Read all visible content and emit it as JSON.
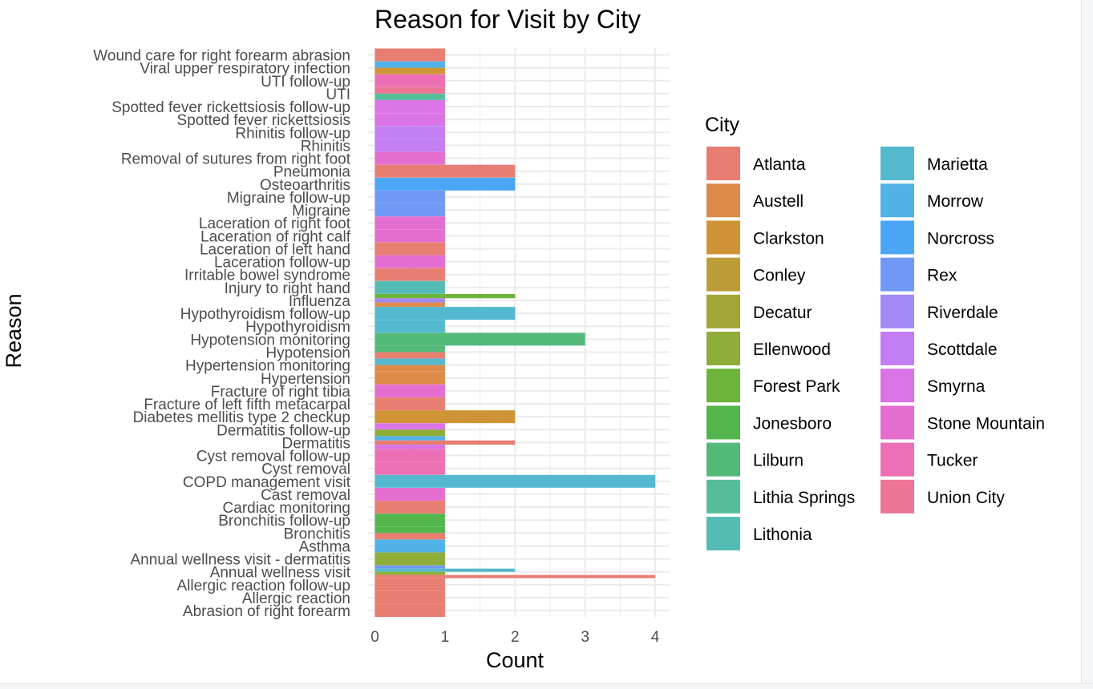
{
  "chart_data": {
    "type": "bar",
    "orientation": "horizontal",
    "stacking": "dodge",
    "title": "Reason for Visit by City",
    "xlabel": "Count",
    "ylabel": "Reason",
    "xlim": [
      0,
      4.2
    ],
    "x_ticks": [
      0,
      1,
      2,
      3,
      4
    ],
    "grid": true,
    "legend": {
      "title": "City",
      "position": "right",
      "columns": 2,
      "entries": [
        {
          "name": "Atlanta",
          "color": "#E87D72"
        },
        {
          "name": "Austell",
          "color": "#DE8A49"
        },
        {
          "name": "Clarkston",
          "color": "#CF9435"
        },
        {
          "name": "Conley",
          "color": "#BB9C37"
        },
        {
          "name": "Decatur",
          "color": "#A3A537"
        },
        {
          "name": "Ellenwood",
          "color": "#8EAD38"
        },
        {
          "name": "Forest Park",
          "color": "#6DB43A"
        },
        {
          "name": "Jonesboro",
          "color": "#52B64C"
        },
        {
          "name": "Lilburn",
          "color": "#53BA7A"
        },
        {
          "name": "Lithia Springs",
          "color": "#55BD9A"
        },
        {
          "name": "Lithonia",
          "color": "#55BCB5"
        },
        {
          "name": "Marietta",
          "color": "#54B9CF"
        },
        {
          "name": "Morrow",
          "color": "#50B2E6"
        },
        {
          "name": "Norcross",
          "color": "#4BA7F6"
        },
        {
          "name": "Rex",
          "color": "#7099F6"
        },
        {
          "name": "Riverdale",
          "color": "#A18AF3"
        },
        {
          "name": "Scottdale",
          "color": "#C27EF2"
        },
        {
          "name": "Smyrna",
          "color": "#DA74E6"
        },
        {
          "name": "Stone Mountain",
          "color": "#E46ED0"
        },
        {
          "name": "Tucker",
          "color": "#ED6FB5"
        },
        {
          "name": "Union City",
          "color": "#EC7495"
        }
      ]
    },
    "categories": [
      "Wound care for right forearm abrasion",
      "Viral upper respiratory infection",
      "UTI follow-up",
      "UTI",
      "Spotted fever rickettsiosis follow-up",
      "Spotted fever rickettsiosis",
      "Rhinitis follow-up",
      "Rhinitis",
      "Removal of sutures from right foot",
      "Pneumonia",
      "Osteoarthritis",
      "Migraine follow-up",
      "Migraine",
      "Laceration of right foot",
      "Laceration of right calf",
      "Laceration of left hand",
      "Laceration follow-up",
      "Irritable bowel syndrome",
      "Injury to right hand",
      "Influenza",
      "Hypothyroidism follow-up",
      "Hypothyroidism",
      "Hypotension monitoring",
      "Hypotension",
      "Hypertension monitoring",
      "Hypertension",
      "Fracture of right tibia",
      "Fracture of left fifth metacarpal",
      "Diabetes mellitis type 2 checkup",
      "Dermatitis follow-up",
      "Dermatitis",
      "Cyst removal follow-up",
      "Cyst removal",
      "COPD management visit",
      "Cast removal",
      "Cardiac monitoring",
      "Bronchitis follow-up",
      "Bronchitis",
      "Asthma",
      "Annual wellness visit - dermatitis",
      "Annual wellness visit",
      "Allergic reaction follow-up",
      "Allergic reaction",
      "Abrasion of right forearm"
    ],
    "bars": [
      {
        "reason": "Wound care for right forearm abrasion",
        "segments": [
          {
            "city": "Atlanta",
            "value": 1
          }
        ]
      },
      {
        "reason": "Viral upper respiratory infection",
        "segments": [
          {
            "city": "Morrow",
            "value": 1
          },
          {
            "city": "Clarkston",
            "value": 1
          }
        ]
      },
      {
        "reason": "UTI follow-up",
        "segments": [
          {
            "city": "Tucker",
            "value": 1
          }
        ]
      },
      {
        "reason": "UTI",
        "segments": [
          {
            "city": "Union City",
            "value": 1
          },
          {
            "city": "Lithia Springs",
            "value": 1
          }
        ]
      },
      {
        "reason": "Spotted fever rickettsiosis follow-up",
        "segments": [
          {
            "city": "Smyrna",
            "value": 1
          }
        ]
      },
      {
        "reason": "Spotted fever rickettsiosis",
        "segments": [
          {
            "city": "Smyrna",
            "value": 1
          }
        ]
      },
      {
        "reason": "Rhinitis follow-up",
        "segments": [
          {
            "city": "Scottdale",
            "value": 1
          }
        ]
      },
      {
        "reason": "Rhinitis",
        "segments": [
          {
            "city": "Scottdale",
            "value": 1
          }
        ]
      },
      {
        "reason": "Removal of sutures from right foot",
        "segments": [
          {
            "city": "Stone Mountain",
            "value": 1
          }
        ]
      },
      {
        "reason": "Pneumonia",
        "segments": [
          {
            "city": "Atlanta",
            "value": 2
          }
        ]
      },
      {
        "reason": "Osteoarthritis",
        "segments": [
          {
            "city": "Norcross",
            "value": 2
          }
        ]
      },
      {
        "reason": "Migraine follow-up",
        "segments": [
          {
            "city": "Rex",
            "value": 1
          }
        ]
      },
      {
        "reason": "Migraine",
        "segments": [
          {
            "city": "Rex",
            "value": 1
          }
        ]
      },
      {
        "reason": "Laceration of right foot",
        "segments": [
          {
            "city": "Stone Mountain",
            "value": 1
          }
        ]
      },
      {
        "reason": "Laceration of right calf",
        "segments": [
          {
            "city": "Stone Mountain",
            "value": 1
          }
        ]
      },
      {
        "reason": "Laceration of left hand",
        "segments": [
          {
            "city": "Atlanta",
            "value": 1
          }
        ]
      },
      {
        "reason": "Laceration follow-up",
        "segments": [
          {
            "city": "Stone Mountain",
            "value": 1
          }
        ]
      },
      {
        "reason": "Irritable bowel syndrome",
        "segments": [
          {
            "city": "Atlanta",
            "value": 1
          }
        ]
      },
      {
        "reason": "Injury to right hand",
        "segments": [
          {
            "city": "Lithonia",
            "value": 1
          }
        ]
      },
      {
        "reason": "Influenza",
        "segments": [
          {
            "city": "Forest Park",
            "value": 2
          },
          {
            "city": "Riverdale",
            "value": 1
          },
          {
            "city": "Austell",
            "value": 1
          }
        ]
      },
      {
        "reason": "Hypothyroidism follow-up",
        "segments": [
          {
            "city": "Marietta",
            "value": 2
          }
        ]
      },
      {
        "reason": "Hypothyroidism",
        "segments": [
          {
            "city": "Marietta",
            "value": 1
          }
        ]
      },
      {
        "reason": "Hypotension monitoring",
        "segments": [
          {
            "city": "Lilburn",
            "value": 3
          }
        ]
      },
      {
        "reason": "Hypotension",
        "segments": [
          {
            "city": "Lilburn",
            "value": 1
          },
          {
            "city": "Atlanta",
            "value": 1
          }
        ]
      },
      {
        "reason": "Hypertension monitoring",
        "segments": [
          {
            "city": "Marietta",
            "value": 1
          },
          {
            "city": "Austell",
            "value": 1
          }
        ]
      },
      {
        "reason": "Hypertension",
        "segments": [
          {
            "city": "Austell",
            "value": 1
          }
        ]
      },
      {
        "reason": "Fracture of right tibia",
        "segments": [
          {
            "city": "Stone Mountain",
            "value": 1
          }
        ]
      },
      {
        "reason": "Fracture of left fifth metacarpal",
        "segments": [
          {
            "city": "Atlanta",
            "value": 1
          }
        ]
      },
      {
        "reason": "Diabetes mellitis type 2 checkup",
        "segments": [
          {
            "city": "Clarkston",
            "value": 2
          }
        ]
      },
      {
        "reason": "Dermatitis follow-up",
        "segments": [
          {
            "city": "Smyrna",
            "value": 1
          },
          {
            "city": "Ellenwood",
            "value": 1
          }
        ]
      },
      {
        "reason": "Dermatitis",
        "segments": [
          {
            "city": "Morrow",
            "value": 1
          },
          {
            "city": "Atlanta",
            "value": 2
          },
          {
            "city": "Smyrna",
            "value": 1
          }
        ]
      },
      {
        "reason": "Cyst removal follow-up",
        "segments": [
          {
            "city": "Tucker",
            "value": 1
          }
        ]
      },
      {
        "reason": "Cyst removal",
        "segments": [
          {
            "city": "Tucker",
            "value": 1
          }
        ]
      },
      {
        "reason": "COPD management visit",
        "segments": [
          {
            "city": "Marietta",
            "value": 4
          }
        ]
      },
      {
        "reason": "Cast removal",
        "segments": [
          {
            "city": "Stone Mountain",
            "value": 1
          }
        ]
      },
      {
        "reason": "Cardiac monitoring",
        "segments": [
          {
            "city": "Atlanta",
            "value": 1
          }
        ]
      },
      {
        "reason": "Bronchitis follow-up",
        "segments": [
          {
            "city": "Jonesboro",
            "value": 1
          }
        ]
      },
      {
        "reason": "Bronchitis",
        "segments": [
          {
            "city": "Jonesboro",
            "value": 1
          },
          {
            "city": "Atlanta",
            "value": 1
          }
        ]
      },
      {
        "reason": "Asthma",
        "segments": [
          {
            "city": "Morrow",
            "value": 1
          }
        ]
      },
      {
        "reason": "Annual wellness visit - dermatitis",
        "segments": [
          {
            "city": "Ellenwood",
            "value": 1
          }
        ]
      },
      {
        "reason": "Annual wellness visit",
        "segments": [
          {
            "city": "Rex",
            "value": 1
          },
          {
            "city": "Marietta",
            "value": 2
          },
          {
            "city": "Ellenwood",
            "value": 1
          },
          {
            "city": "Atlanta",
            "value": 4
          }
        ]
      },
      {
        "reason": "Allergic reaction follow-up",
        "segments": [
          {
            "city": "Atlanta",
            "value": 1
          }
        ]
      },
      {
        "reason": "Allergic reaction",
        "segments": [
          {
            "city": "Atlanta",
            "value": 1
          }
        ]
      },
      {
        "reason": "Abrasion of right forearm",
        "segments": [
          {
            "city": "Atlanta",
            "value": 1
          }
        ]
      }
    ]
  }
}
